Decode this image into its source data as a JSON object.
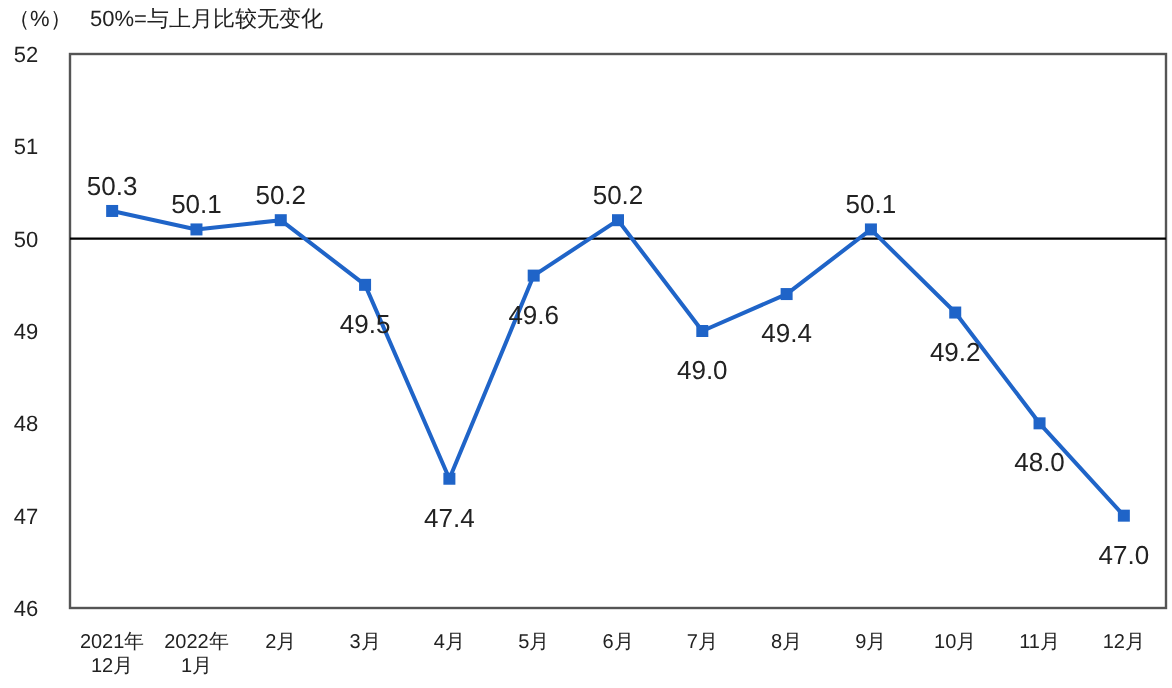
{
  "chart_data": {
    "type": "line",
    "ylabel": "（%）",
    "annotations": [
      "50%=与上月比较无变化"
    ],
    "categories": [
      "2021年\n12月",
      "2022年\n1月",
      "2月",
      "3月",
      "4月",
      "5月",
      "6月",
      "7月",
      "8月",
      "9月",
      "10月",
      "11月",
      "12月"
    ],
    "series": [
      {
        "color": "#1f64c8",
        "values": [
          50.3,
          50.1,
          50.2,
          49.5,
          47.4,
          49.6,
          50.2,
          49.0,
          49.4,
          50.1,
          49.2,
          48.0,
          47.0
        ],
        "value_labels": [
          "50.3",
          "50.1",
          "50.2",
          "49.5",
          "47.4",
          "49.6",
          "50.2",
          "49.0",
          "49.4",
          "50.1",
          "49.2",
          "48.0",
          "47.0"
        ]
      }
    ],
    "ylim": [
      46,
      52
    ],
    "yticks": [
      46,
      47,
      48,
      49,
      50,
      51,
      52
    ],
    "ref_lines": [
      {
        "axis": "y",
        "value": 50,
        "color": "#000000"
      }
    ],
    "marker": "square",
    "line_style": "solid",
    "grid": false
  }
}
